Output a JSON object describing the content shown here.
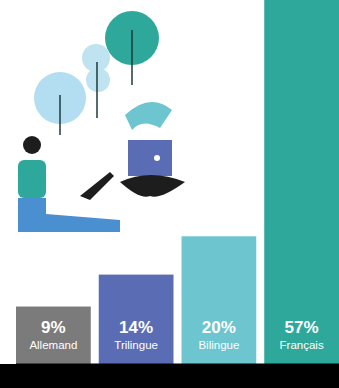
{
  "chart_data": {
    "type": "bar",
    "categories": [
      "Allemand",
      "Trilingue",
      "Bilingue",
      "Français"
    ],
    "values": [
      9,
      14,
      20,
      57
    ],
    "value_labels": [
      "9%",
      "14%",
      "20%",
      "57%"
    ],
    "colors": [
      "#7b7b7b",
      "#5a6db4",
      "#6cc5cf",
      "#2ea89b"
    ],
    "ylim": [
      0,
      57
    ],
    "data_labels": true,
    "tick_labels": false
  }
}
